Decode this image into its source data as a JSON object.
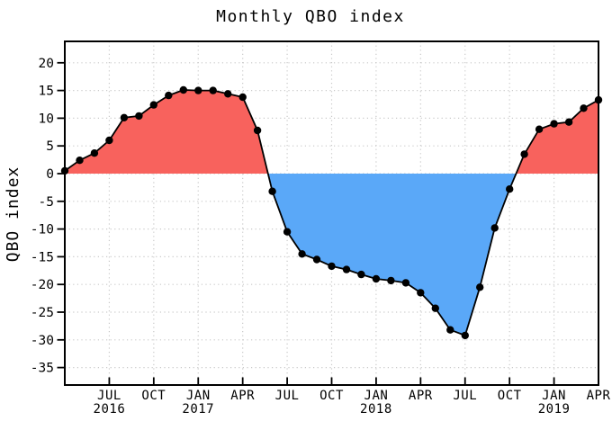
{
  "title": "Monthly QBO index",
  "y_axis": {
    "label": "QBO index",
    "ticks": [
      20,
      15,
      10,
      5,
      0,
      -5,
      -10,
      -15,
      -20,
      -25,
      -30,
      -35
    ]
  },
  "x_axis": {
    "ticks": [
      {
        "m": 3,
        "label": "JUL",
        "year": "2016"
      },
      {
        "m": 6,
        "label": "OCT",
        "year": ""
      },
      {
        "m": 9,
        "label": "JAN",
        "year": "2017"
      },
      {
        "m": 12,
        "label": "APR",
        "year": ""
      },
      {
        "m": 15,
        "label": "JUL",
        "year": ""
      },
      {
        "m": 18,
        "label": "OCT",
        "year": ""
      },
      {
        "m": 21,
        "label": "JAN",
        "year": "2018"
      },
      {
        "m": 24,
        "label": "APR",
        "year": ""
      },
      {
        "m": 27,
        "label": "JUL",
        "year": ""
      },
      {
        "m": 30,
        "label": "OCT",
        "year": ""
      },
      {
        "m": 33,
        "label": "JAN",
        "year": "2019"
      },
      {
        "m": 36,
        "label": "APR",
        "year": ""
      }
    ]
  },
  "colors": {
    "positive_fill": "#f8625d",
    "negative_fill": "#5aa8f8",
    "line": "#000000",
    "marker": "#000000",
    "grid": "#c9c9c9",
    "axis": "#000000",
    "background": "#ffffff"
  },
  "chart_data": {
    "type": "area",
    "title": "Monthly QBO index",
    "xlabel": "",
    "ylabel": "QBO index",
    "x": [
      "APR 2016",
      "MAY 2016",
      "JUN 2016",
      "JUL 2016",
      "AUG 2016",
      "SEP 2016",
      "OCT 2016",
      "NOV 2016",
      "DEC 2016",
      "JAN 2017",
      "FEB 2017",
      "MAR 2017",
      "APR 2017",
      "MAY 2017",
      "JUN 2017",
      "JUL 2017",
      "AUG 2017",
      "SEP 2017",
      "OCT 2017",
      "NOV 2017",
      "DEC 2017",
      "JAN 2018",
      "FEB 2018",
      "MAR 2018",
      "APR 2018",
      "MAY 2018",
      "JUN 2018",
      "JUL 2018",
      "AUG 2018",
      "SEP 2018",
      "OCT 2018",
      "NOV 2018",
      "DEC 2018",
      "JAN 2019",
      "FEB 2019",
      "MAR 2019",
      "APR 2019"
    ],
    "values": [
      0.5,
      2.4,
      3.7,
      6.0,
      10.1,
      10.4,
      12.4,
      14.1,
      15.1,
      15.0,
      15.0,
      14.4,
      13.8,
      7.8,
      -3.2,
      -10.5,
      -14.5,
      -15.5,
      -16.7,
      -17.3,
      -18.2,
      -19.0,
      -19.3,
      -19.7,
      -21.5,
      -24.3,
      -28.2,
      -29.2,
      -20.5,
      -9.8,
      -2.8,
      3.5,
      8.0,
      9.0,
      9.3,
      11.8,
      13.3
    ],
    "baseline": 0,
    "fill_above_color": "#f8625d",
    "fill_below_color": "#5aa8f8",
    "ylim": [
      -38,
      24
    ],
    "ytick_step": 5,
    "grid": "dotted",
    "legend": "none",
    "marker": "filled-circle"
  }
}
